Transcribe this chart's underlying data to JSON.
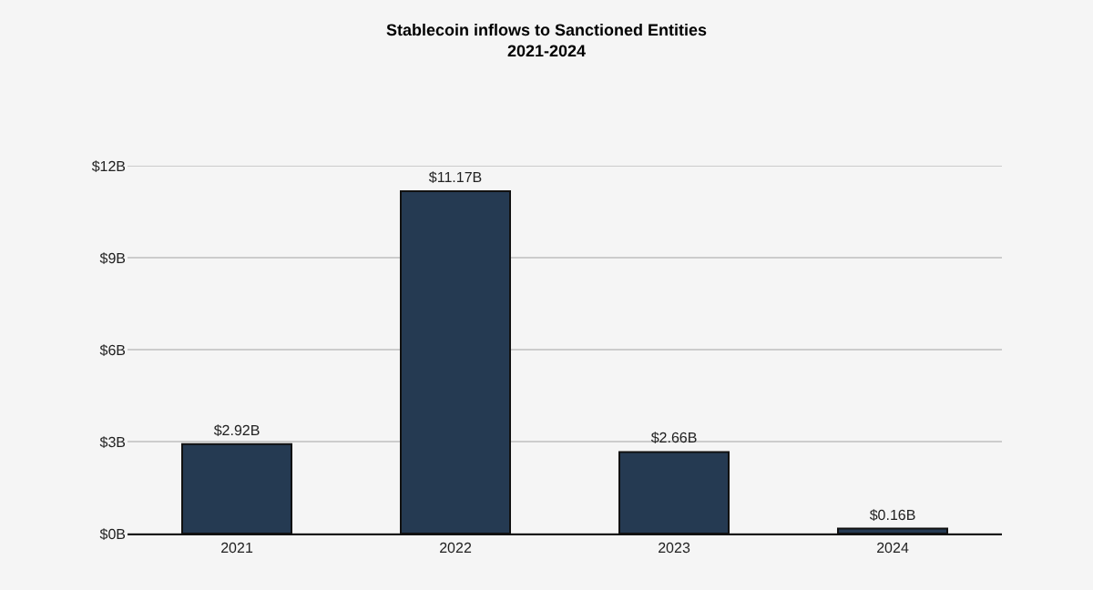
{
  "chart_data": {
    "type": "bar",
    "title": "Stablecoin inflows to Sanctioned Entities\n2021-2024",
    "categories": [
      "2021",
      "2022",
      "2023",
      "2024"
    ],
    "values": [
      2.92,
      11.17,
      2.66,
      0.16
    ],
    "color": "#253a52",
    "value_labels": [
      "$2.92B",
      "$11.17B",
      "$2.66B",
      "$0.16B"
    ],
    "ylim": [
      0,
      12
    ],
    "yticks": [
      {
        "value": 0,
        "label": "$0B"
      },
      {
        "value": 3,
        "label": "$3B"
      },
      {
        "value": 6,
        "label": "$6B"
      },
      {
        "value": 9,
        "label": "$9B"
      },
      {
        "value": 12,
        "label": "$12B"
      }
    ],
    "grid": "y"
  }
}
